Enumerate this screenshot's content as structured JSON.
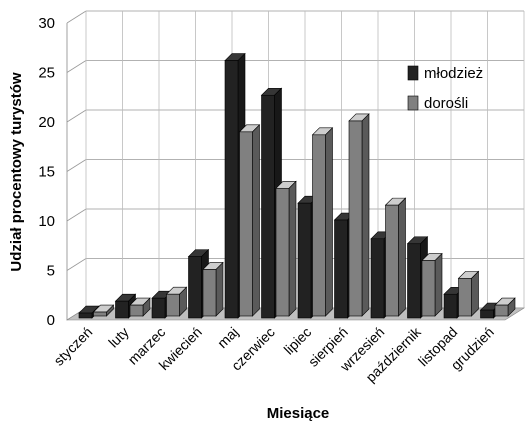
{
  "chart_data": {
    "type": "bar",
    "categories": [
      "styczeń",
      "luty",
      "marzec",
      "kwiecień",
      "maj",
      "czerwiec",
      "lipiec",
      "sierpień",
      "wrzesień",
      "październik",
      "listopad",
      "grudzień"
    ],
    "series": [
      {
        "name": "młodzież",
        "color": "#222222",
        "values": [
          0.5,
          1.7,
          2.0,
          6.2,
          26.0,
          22.5,
          11.6,
          9.9,
          8.0,
          7.5,
          2.4,
          0.8
        ]
      },
      {
        "name": "dorośli",
        "color": "#808080",
        "values": [
          0.4,
          1.1,
          2.2,
          4.7,
          18.6,
          12.9,
          18.3,
          19.7,
          11.2,
          5.6,
          3.8,
          1.1
        ]
      }
    ],
    "xlabel": "Miesiące",
    "ylabel": "Udział procentowy turystów",
    "ylim": [
      0,
      30
    ],
    "yticks": [
      0,
      5,
      10,
      15,
      20,
      25,
      30
    ],
    "grid": true,
    "legend": "right"
  }
}
